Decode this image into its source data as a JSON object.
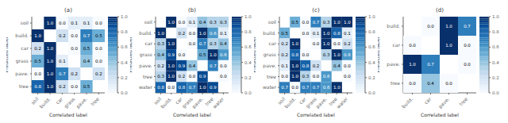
{
  "chart_data": [
    {
      "type": "heatmap",
      "title": "(a)",
      "x_label": "Correlated label",
      "y_label": "Predicted label",
      "categories": [
        "soil",
        "build.",
        "car",
        "grass",
        "pave.",
        "tree"
      ],
      "matrix": [
        [
          null,
          1.0,
          0.0,
          0.1,
          0.1,
          0.0
        ],
        [
          1.0,
          null,
          0.2,
          0.0,
          0.7,
          0.5
        ],
        [
          0.2,
          1.0,
          null,
          0.0,
          0.5,
          0.0
        ],
        [
          0.5,
          1.0,
          0.1,
          null,
          0.4,
          0.0
        ],
        [
          0.0,
          1.0,
          0.7,
          0.2,
          null,
          0.2
        ],
        [
          0.8,
          1.0,
          0.2,
          0.0,
          0.5,
          null
        ]
      ],
      "value_labels": [
        [
          null,
          "1.0",
          "0.0",
          "0.1",
          "0.1",
          "0.0"
        ],
        [
          "1.0",
          null,
          "0.2",
          "0.0",
          "0.7",
          "0.5"
        ],
        [
          "0.2",
          "1.0",
          null,
          "0.0",
          "0.5",
          "0.0"
        ],
        [
          "0.5",
          "1.0",
          "0.1",
          null,
          "0.4",
          "0.0"
        ],
        [
          "0.0",
          "1.0",
          "0.7",
          "0.2",
          null,
          "0.2"
        ],
        [
          "0.8",
          "1.0",
          "0.2",
          "0.0",
          "0.5",
          null
        ]
      ],
      "data_labels": true,
      "color": "Blues",
      "colorbar_range": [
        0.0,
        1.0
      ],
      "colorbar_ticks": [
        {
          "value": 0.0,
          "label": "0.0"
        },
        {
          "value": 0.2,
          "label": "0.2"
        },
        {
          "value": 0.4,
          "label": "0.4"
        },
        {
          "value": 0.6,
          "label": "0.6"
        },
        {
          "value": 0.8,
          "label": "0.8"
        },
        {
          "value": 1.0,
          "label": "1.0"
        }
      ]
    },
    {
      "type": "heatmap",
      "title": "(b)",
      "x_label": "Correlated label",
      "y_label": "Predicted label",
      "categories": [
        "soil",
        "build.",
        "car",
        "grass",
        "pave.",
        "tree",
        "water"
      ],
      "matrix": [
        [
          null,
          1.0,
          0.0,
          0.1,
          0.4,
          0.3,
          0.3
        ],
        [
          1.0,
          null,
          0.2,
          0.0,
          1.0,
          0.6,
          0.1
        ],
        [
          0.3,
          1.0,
          null,
          0.0,
          0.7,
          0.3,
          0.4
        ],
        [
          0.4,
          0.9,
          0.0,
          null,
          0.5,
          1.0,
          0.6
        ],
        [
          0.2,
          1.0,
          0.9,
          0.4,
          null,
          0.7,
          0.0
        ],
        [
          0.3,
          1.0,
          0.2,
          0.0,
          0.9,
          null,
          0.0
        ],
        [
          0.8,
          0.0,
          0.8,
          0.7,
          1.0,
          0.9,
          null
        ]
      ],
      "value_labels": [
        [
          null,
          "1.0",
          "0.0",
          "0.1",
          "0.4",
          "0.3",
          "0.3"
        ],
        [
          "1.0",
          null,
          "0.2",
          "0.0",
          "1.0",
          "0.6",
          "0.1"
        ],
        [
          "0.3",
          "1.0",
          null,
          "0.0",
          "0.7",
          "0.3",
          "0.4"
        ],
        [
          "0.4",
          "0.9",
          "0.0",
          null,
          "0.5",
          "1.0",
          "0.6"
        ],
        [
          "0.2",
          "1.0",
          "0.9",
          "0.4",
          null,
          "0.7",
          "0.0"
        ],
        [
          "0.3",
          "1.0",
          "0.2",
          "0.0",
          "0.9",
          null,
          "0.0"
        ],
        [
          "0.8",
          "0.0",
          "0.8",
          "0.7",
          "1.0",
          "0.9",
          null
        ]
      ],
      "data_labels": true,
      "color": "Blues",
      "colorbar_range": [
        0.0,
        1.0
      ],
      "colorbar_ticks": [
        {
          "value": 0.0,
          "label": "0.0"
        },
        {
          "value": 0.2,
          "label": "0.2"
        },
        {
          "value": 0.4,
          "label": "0.4"
        },
        {
          "value": 0.6,
          "label": "0.6"
        },
        {
          "value": 0.8,
          "label": "0.8"
        },
        {
          "value": 1.0,
          "label": "1.0"
        }
      ]
    },
    {
      "type": "heatmap",
      "title": "(c)",
      "x_label": "Correlated label",
      "y_label": "Predicted label",
      "categories": [
        "soil",
        "build.",
        "car",
        "grass",
        "pave.",
        "tree",
        "water"
      ],
      "matrix": [
        [
          null,
          0.5,
          0.0,
          0.7,
          0.3,
          1.0,
          1.0
        ],
        [
          0.5,
          null,
          0.0,
          0.1,
          1.0,
          0.8,
          0.1
        ],
        [
          0.2,
          1.0,
          null,
          0.0,
          1.0,
          0.0,
          0.2
        ],
        [
          0.2,
          0.8,
          0.0,
          null,
          0.3,
          1.0,
          0.6
        ],
        [
          0.1,
          1.0,
          0.8,
          0.2,
          null,
          0.4,
          0.0
        ],
        [
          0.0,
          1.0,
          0.3,
          0.0,
          0.6,
          null,
          0.0
        ],
        [
          0.7,
          0.0,
          0.7,
          0.7,
          0.6,
          1.0,
          null
        ]
      ],
      "value_labels": [
        [
          null,
          "0.5",
          "0.0",
          "0.7",
          "0.3",
          "1.0",
          "1.0"
        ],
        [
          "0.5",
          null,
          "0.0",
          "0.1",
          "1.0",
          "0.8",
          "0.1"
        ],
        [
          "0.2",
          "1.0",
          null,
          "0.0",
          "1.0",
          "0.0",
          "0.2"
        ],
        [
          "0.2",
          "0.8",
          "0.0",
          null,
          "0.3",
          "1.0",
          "0.6"
        ],
        [
          "0.1",
          "1.0",
          "0.8",
          "0.2",
          null,
          "0.4",
          "0.0"
        ],
        [
          "0.0",
          "1.0",
          "0.3",
          "0.0",
          "0.6",
          null,
          "0.0"
        ],
        [
          "0.7",
          "0.0",
          "0.7",
          "0.7",
          "0.6",
          "1.0",
          null
        ]
      ],
      "data_labels": true,
      "color": "Blues",
      "colorbar_range": [
        0.0,
        1.0
      ],
      "colorbar_ticks": [
        {
          "value": 0.0,
          "label": "0.0"
        },
        {
          "value": 0.2,
          "label": "0.2"
        },
        {
          "value": 0.4,
          "label": "0.4"
        },
        {
          "value": 0.6,
          "label": "0.6"
        },
        {
          "value": 0.8,
          "label": "0.8"
        },
        {
          "value": 1.0,
          "label": "1.0"
        }
      ]
    },
    {
      "type": "heatmap",
      "title": "(d)",
      "x_label": "Correlated label",
      "y_label": "Predicted label",
      "categories": [
        "build.",
        "car",
        "pave.",
        "tree"
      ],
      "matrix": [
        [
          null,
          0.0,
          1.0,
          0.7
        ],
        [
          0.0,
          null,
          1.0,
          0.0
        ],
        [
          1.0,
          0.7,
          null,
          0.0
        ],
        [
          0.0,
          0.4,
          0.0,
          null
        ]
      ],
      "value_labels": [
        [
          null,
          "0.0",
          "1.0",
          "0.7"
        ],
        [
          "0.0",
          null,
          "1.0",
          "0.0"
        ],
        [
          "1.0",
          "0.7",
          null,
          "0.0"
        ],
        [
          "0.0",
          "0.4",
          "0.0",
          null
        ]
      ],
      "data_labels": true,
      "color": "Blues",
      "colorbar_range": [
        0.0,
        1.0
      ],
      "colorbar_ticks": [
        {
          "value": 0.0,
          "label": "0.0"
        },
        {
          "value": 0.2,
          "label": "0.2"
        },
        {
          "value": 0.4,
          "label": "0.4"
        },
        {
          "value": 0.6,
          "label": "0.6"
        },
        {
          "value": 0.8,
          "label": "0.8"
        },
        {
          "value": 1.0,
          "label": "1.0"
        }
      ]
    }
  ]
}
